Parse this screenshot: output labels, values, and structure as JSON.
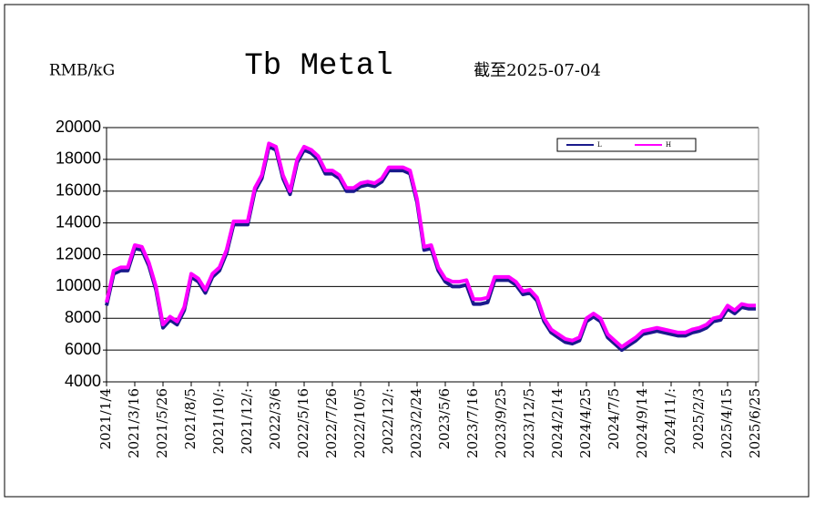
{
  "chart_data": {
    "type": "line",
    "title": "Tb Metal",
    "unit_label": "RMB/kG",
    "subtitle": "截至2025-07-04",
    "categories": [
      "2021/1/4",
      null,
      null,
      null,
      "2021/3/16",
      null,
      null,
      null,
      "2021/5/26",
      null,
      null,
      null,
      "2021/8/5",
      null,
      null,
      null,
      "2021/10/:",
      null,
      null,
      null,
      "2021/12/:",
      null,
      null,
      null,
      "2022/3/6",
      null,
      null,
      null,
      "2022/5/16",
      null,
      null,
      null,
      "2022/7/26",
      null,
      null,
      null,
      "2022/10/5",
      null,
      null,
      null,
      "2022/12/:",
      null,
      null,
      null,
      "2023/2/24",
      null,
      null,
      null,
      "2023/5/6",
      null,
      null,
      null,
      "2023/7/16",
      null,
      null,
      null,
      "2023/9/25",
      null,
      null,
      null,
      "2023/12/5",
      null,
      null,
      null,
      "2024/2/14",
      null,
      null,
      null,
      "2024/4/25",
      null,
      null,
      null,
      "2024/7/5",
      null,
      null,
      null,
      "2024/9/14",
      null,
      null,
      null,
      "2024/11/:",
      null,
      null,
      null,
      "2025/2/3",
      null,
      null,
      null,
      "2025/4/15",
      null,
      null,
      null,
      "2025/6/25"
    ],
    "series": [
      {
        "name": "L",
        "color": "#1a1a8c",
        "values": [
          8800,
          10800,
          11000,
          11000,
          12400,
          12300,
          11300,
          9800,
          7400,
          7900,
          7600,
          8500,
          10600,
          10300,
          9600,
          10600,
          11000,
          12100,
          13900,
          13900,
          13900,
          16000,
          16800,
          18800,
          18600,
          16800,
          15800,
          17800,
          18600,
          18400,
          18000,
          17100,
          17100,
          16800,
          16000,
          16000,
          16300,
          16400,
          16300,
          16600,
          17300,
          17300,
          17300,
          17100,
          15300,
          12300,
          12400,
          11000,
          10300,
          10000,
          10000,
          10100,
          8900,
          8900,
          9000,
          10400,
          10400,
          10400,
          10100,
          9500,
          9600,
          9100,
          7800,
          7100,
          6800,
          6500,
          6400,
          6600,
          7800,
          8100,
          7800,
          6800,
          6400,
          6000,
          6300,
          6600,
          7000,
          7100,
          7200,
          7100,
          7000,
          6900,
          6900,
          7100,
          7200,
          7400,
          7800,
          7900,
          8600,
          8300,
          8700,
          8600,
          8600
        ]
      },
      {
        "name": "H",
        "color": "#ff00ff",
        "values": [
          9000,
          11000,
          11200,
          11200,
          12600,
          12500,
          11500,
          10000,
          7600,
          8100,
          7800,
          8700,
          10800,
          10500,
          9800,
          10800,
          11200,
          12300,
          14100,
          14100,
          14100,
          16200,
          17000,
          19000,
          18800,
          17000,
          16000,
          18000,
          18800,
          18600,
          18200,
          17300,
          17300,
          17000,
          16200,
          16200,
          16500,
          16600,
          16500,
          16800,
          17500,
          17500,
          17500,
          17300,
          15500,
          12500,
          12600,
          11200,
          10500,
          10300,
          10300,
          10400,
          9200,
          9200,
          9300,
          10600,
          10600,
          10600,
          10300,
          9700,
          9800,
          9300,
          8000,
          7300,
          7000,
          6700,
          6600,
          6800,
          8000,
          8300,
          8000,
          7000,
          6600,
          6200,
          6500,
          6800,
          7200,
          7300,
          7400,
          7300,
          7200,
          7100,
          7100,
          7300,
          7400,
          7600,
          8000,
          8100,
          8800,
          8500,
          8900,
          8800,
          8800
        ]
      }
    ],
    "ylim": [
      4000,
      20000
    ],
    "yticks": [
      4000,
      6000,
      8000,
      10000,
      12000,
      14000,
      16000,
      18000,
      20000
    ],
    "grid": true,
    "legend": "top-right"
  }
}
